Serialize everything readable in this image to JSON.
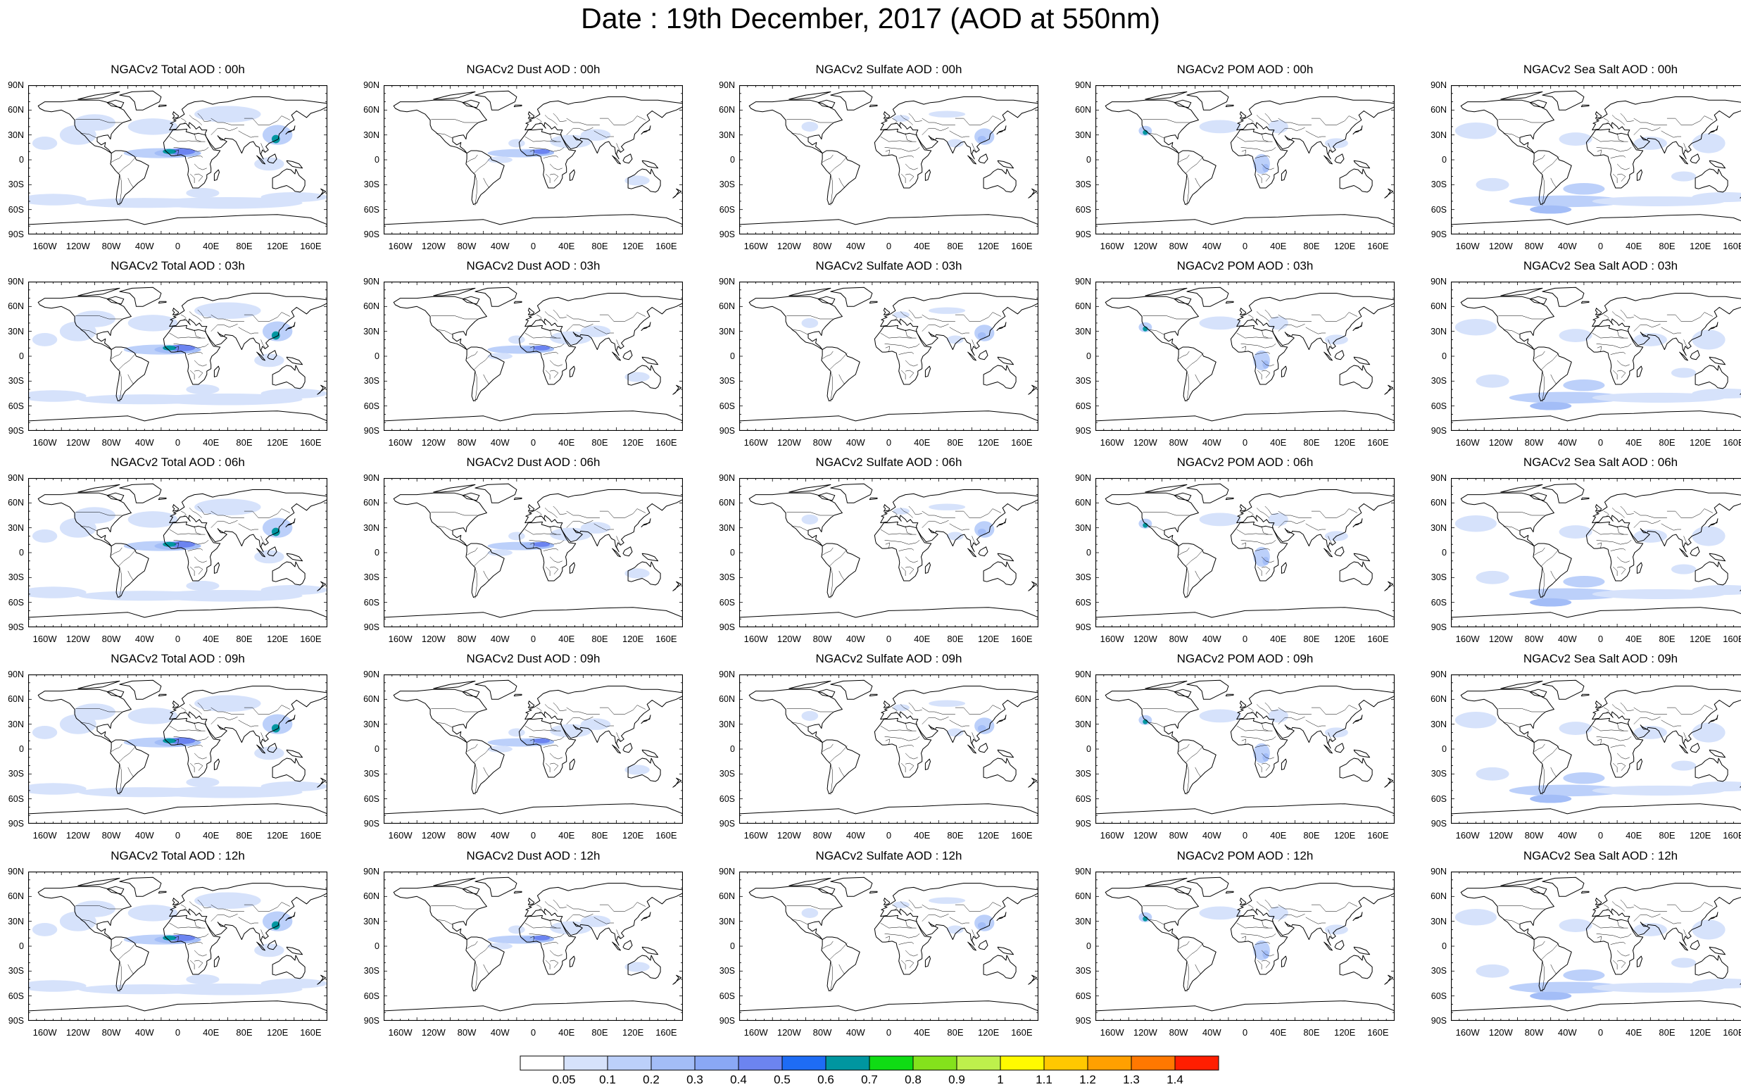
{
  "title": "Date : 19th December, 2017 (AOD at 550nm)",
  "panels": [
    [
      "NGACv2 Total AOD : 00h",
      "NGACv2 Dust AOD : 00h",
      "NGACv2 Sulfate AOD : 00h",
      "NGACv2 POM AOD : 00h",
      "NGACv2 Sea Salt AOD : 00h"
    ],
    [
      "NGACv2 Total AOD : 03h",
      "NGACv2 Dust AOD : 03h",
      "NGACv2 Sulfate AOD : 03h",
      "NGACv2 POM AOD : 03h",
      "NGACv2 Sea Salt AOD : 03h"
    ],
    [
      "NGACv2 Total AOD : 06h",
      "NGACv2 Dust AOD : 06h",
      "NGACv2 Sulfate AOD : 06h",
      "NGACv2 POM AOD : 06h",
      "NGACv2 Sea Salt AOD : 06h"
    ],
    [
      "NGACv2 Total AOD : 09h",
      "NGACv2 Dust AOD : 09h",
      "NGACv2 Sulfate AOD : 09h",
      "NGACv2 POM AOD : 09h",
      "NGACv2 Sea Salt  AOD : 09h"
    ],
    [
      "NGACv2 Total AOD : 12h",
      "NGACv2 Dust AOD : 12h",
      "NGACv2 Sulfate AOD : 12h",
      "NGACv2 POM  AOD : 12h",
      "NGACv2 Sea Salt  AOD : 12h"
    ]
  ],
  "lat_ticks": [
    "90N",
    "60N",
    "30N",
    "0",
    "30S",
    "60S",
    "90S"
  ],
  "lon_ticks": [
    "160W",
    "120W",
    "80W",
    "40W",
    "0",
    "40E",
    "80E",
    "120E",
    "160E"
  ],
  "colorbar": {
    "colors": [
      "#ffffff",
      "#d6e2fb",
      "#bcd0fa",
      "#a3bdf7",
      "#8aa8f5",
      "#6c84f0",
      "#1e6cf5",
      "#0096a0",
      "#0fdc14",
      "#84e21c",
      "#bef04c",
      "#fffa00",
      "#ffc800",
      "#ffa000",
      "#ff7800",
      "#ff1e00"
    ],
    "labels": [
      "0.05",
      "0.1",
      "0.2",
      "0.3",
      "0.4",
      "0.5",
      "0.6",
      "0.7",
      "0.8",
      "0.9",
      "1",
      "1.1",
      "1.2",
      "1.3",
      "1.4"
    ]
  }
}
